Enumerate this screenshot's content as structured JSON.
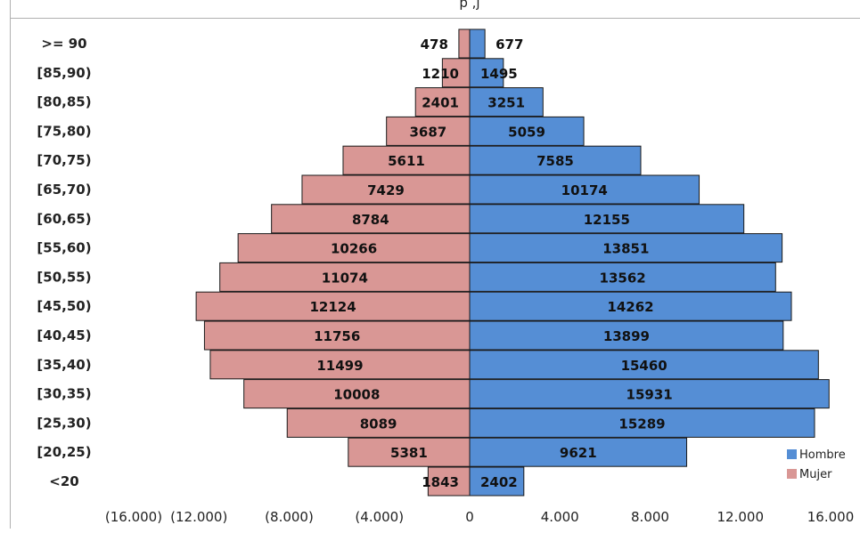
{
  "chart_data": {
    "type": "bar",
    "orientation": "horizontal",
    "subtype": "population-pyramid",
    "title": "",
    "visible_title_fragment": "p         ,j",
    "xlabel": "",
    "ylabel": "",
    "categories": [
      ">= 90",
      "[85,90)",
      "[80,85)",
      "[75,80)",
      "[70,75)",
      "[65,70)",
      "[60,65)",
      "[55,60)",
      "[50,55)",
      "[45,50)",
      "[40,45)",
      "[35,40)",
      "[30,35)",
      "[25,30)",
      "[20,25)",
      "<20"
    ],
    "series": [
      {
        "name": "Hombre",
        "color": "#558ed5",
        "side": "right",
        "values": [
          677,
          1495,
          3251,
          5059,
          7585,
          10174,
          12155,
          13851,
          13562,
          14262,
          13899,
          15460,
          15931,
          15289,
          9621,
          2402
        ],
        "labels": [
          "677",
          "1495",
          "3251",
          "5059",
          "7585",
          "10174",
          "12155",
          "13851",
          "13562",
          "14262",
          "13899",
          "15460",
          "15931",
          "15289",
          "9621",
          "2402"
        ]
      },
      {
        "name": "Mujer",
        "color": "#d99795",
        "side": "left",
        "values": [
          478,
          1210,
          2401,
          3687,
          5611,
          7429,
          8784,
          10266,
          11074,
          12124,
          11756,
          11499,
          10008,
          8089,
          5381,
          1843
        ],
        "labels": [
          "478",
          "1210",
          "2401",
          "3687",
          "5611",
          "7429",
          "8784",
          "10266",
          "11074",
          "12124",
          "11756",
          "11499",
          "10008",
          "8089",
          "5381",
          "1843"
        ]
      }
    ],
    "xlim": [
      -16000,
      16000
    ],
    "x_ticks": [
      -16000,
      -12000,
      -8000,
      -4000,
      0,
      4000,
      8000,
      12000,
      16000
    ],
    "x_tick_labels": [
      "(16.000)",
      "(12.000)",
      "(8.000)",
      "(4.000)",
      "0",
      "4.000",
      "8.000",
      "12.000",
      "16.000"
    ],
    "grid": false,
    "legend": {
      "position": "bottom-right",
      "entries": [
        "Hombre",
        "Mujer"
      ]
    }
  }
}
